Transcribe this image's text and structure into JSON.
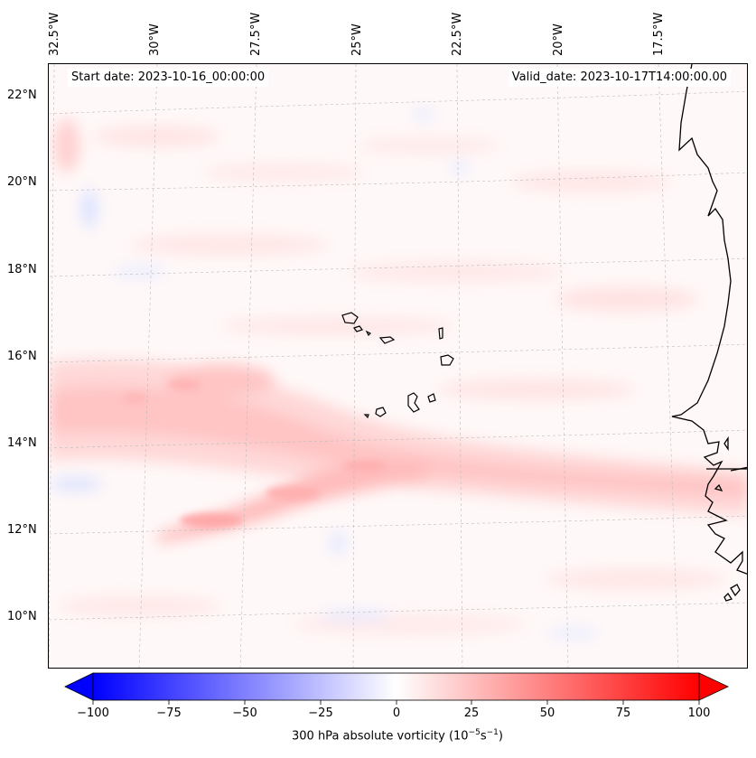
{
  "map": {
    "title_start": "Start date: 2023-10-16_00:00:00",
    "title_valid": "Valid_date: 2023-10-17T14:00:00.00",
    "lon_labels": [
      "32.5°W",
      "30°W",
      "27.5°W",
      "25°W",
      "22.5°W",
      "20°W",
      "17.5°W"
    ],
    "lat_labels": [
      "22°N",
      "20°N",
      "18°N",
      "16°N",
      "14°N",
      "12°N",
      "10°N"
    ],
    "features": [
      "cape-verde-islands",
      "west-africa-coastline",
      "vorticity-band"
    ]
  },
  "colorbar": {
    "ticks": [
      "−100",
      "−75",
      "−50",
      "−25",
      "0",
      "25",
      "50",
      "75",
      "100"
    ],
    "label_prefix": "300 hPa absolute vorticity (10",
    "label_exp1": "−5",
    "label_mid": "s",
    "label_exp2": "−1",
    "label_suffix": ")",
    "range": [
      -100,
      100
    ],
    "neg_color": "#0000ff",
    "pos_color": "#ff0000"
  }
}
